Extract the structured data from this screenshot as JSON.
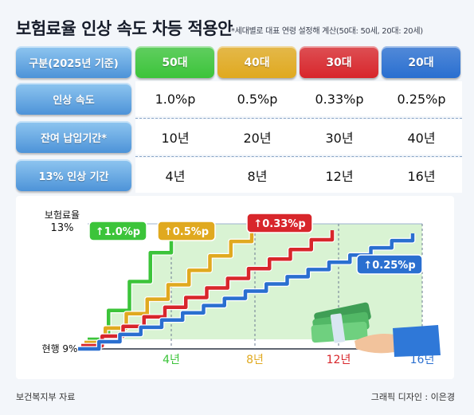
{
  "title": "보험료율 인상 속도 차등 적용안",
  "subtitle": "*세대별로 대표 연령 설정해 계산(50대: 50세, 20대: 20세)",
  "table": {
    "header_label": "구분(2025년 기준)",
    "columns": [
      {
        "label": "50대",
        "color": "#3cc43a"
      },
      {
        "label": "40대",
        "color": "#e0a91f"
      },
      {
        "label": "30대",
        "color": "#d8262b"
      },
      {
        "label": "20대",
        "color": "#2a6fd0"
      }
    ],
    "rows": [
      {
        "label": "인상 속도",
        "values": [
          "1.0%p",
          "0.5%p",
          "0.33%p",
          "0.25%p"
        ]
      },
      {
        "label": "잔여 납입기간*",
        "values": [
          "10년",
          "20년",
          "30년",
          "40년"
        ]
      },
      {
        "label": "13% 인상 기간",
        "values": [
          "4년",
          "8년",
          "12년",
          "16년"
        ]
      }
    ]
  },
  "chart_data": {
    "type": "line",
    "ylabel": "보험료율",
    "y_top_label": "13%",
    "y_bottom_label": "현행 9%",
    "ylim": [
      9,
      13
    ],
    "xlim": [
      0,
      16
    ],
    "x_ticks": [
      "4년",
      "8년",
      "12년",
      "16년"
    ],
    "x_tick_values": [
      4,
      8,
      12,
      16
    ],
    "series": [
      {
        "name": "↑1.0%p",
        "color": "#3cc43a",
        "x": [
          0,
          1,
          2,
          3,
          4
        ],
        "y": [
          9,
          10,
          11,
          12,
          13
        ]
      },
      {
        "name": "↑0.5%p",
        "color": "#e0a91f",
        "x": [
          0,
          1,
          2,
          3,
          4,
          5,
          6,
          7,
          8
        ],
        "y": [
          9,
          9.5,
          10,
          10.5,
          11,
          11.5,
          12,
          12.5,
          13
        ]
      },
      {
        "name": "↑0.33%p",
        "color": "#d8262b",
        "x": [
          0,
          1,
          2,
          3,
          4,
          5,
          6,
          7,
          8,
          9,
          10,
          11,
          12
        ],
        "y": [
          9,
          9.33,
          9.67,
          10,
          10.33,
          10.67,
          11,
          11.33,
          11.67,
          12,
          12.33,
          12.67,
          13
        ]
      },
      {
        "name": "↑0.25%p",
        "color": "#2a6fd0",
        "x": [
          0,
          1,
          2,
          3,
          4,
          5,
          6,
          7,
          8,
          9,
          10,
          11,
          12,
          13,
          14,
          15,
          16
        ],
        "y": [
          9,
          9.25,
          9.5,
          9.75,
          10,
          10.25,
          10.5,
          10.75,
          11,
          11.25,
          11.5,
          11.75,
          12,
          12.25,
          12.5,
          12.75,
          13
        ]
      }
    ]
  },
  "footer": {
    "source": "보건복지부 자료",
    "credit": "그래픽 디자인 : 이은경"
  }
}
